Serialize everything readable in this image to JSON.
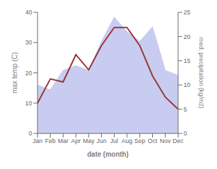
{
  "chart_data": {
    "type": "line",
    "categories": [
      "Jan",
      "Feb",
      "Mar",
      "Apr",
      "May",
      "Jun",
      "Jul",
      "Aug",
      "Sep",
      "Oct",
      "Nov",
      "Dec"
    ],
    "series": [
      {
        "type": "area",
        "color": "#c8ccf0",
        "axis": "y2",
        "values": [
          10,
          9,
          13,
          14,
          13,
          19,
          24,
          21,
          19,
          22,
          13,
          12
        ]
      },
      {
        "type": "line",
        "color": "#993333",
        "values": [
          10,
          18,
          17,
          26,
          21,
          29,
          35,
          35,
          29,
          19,
          12,
          8
        ]
      }
    ],
    "xlabel": "date (month)",
    "ylabel": "max temp (C)",
    "y2label": "med. precipitation (kg/m2)",
    "ylim": [
      0,
      40
    ],
    "yticks": [
      0,
      10,
      20,
      30,
      40
    ],
    "y2lim": [
      0,
      25
    ],
    "y2ticks": [
      0,
      5,
      10,
      15,
      20,
      25
    ],
    "grid": false
  }
}
